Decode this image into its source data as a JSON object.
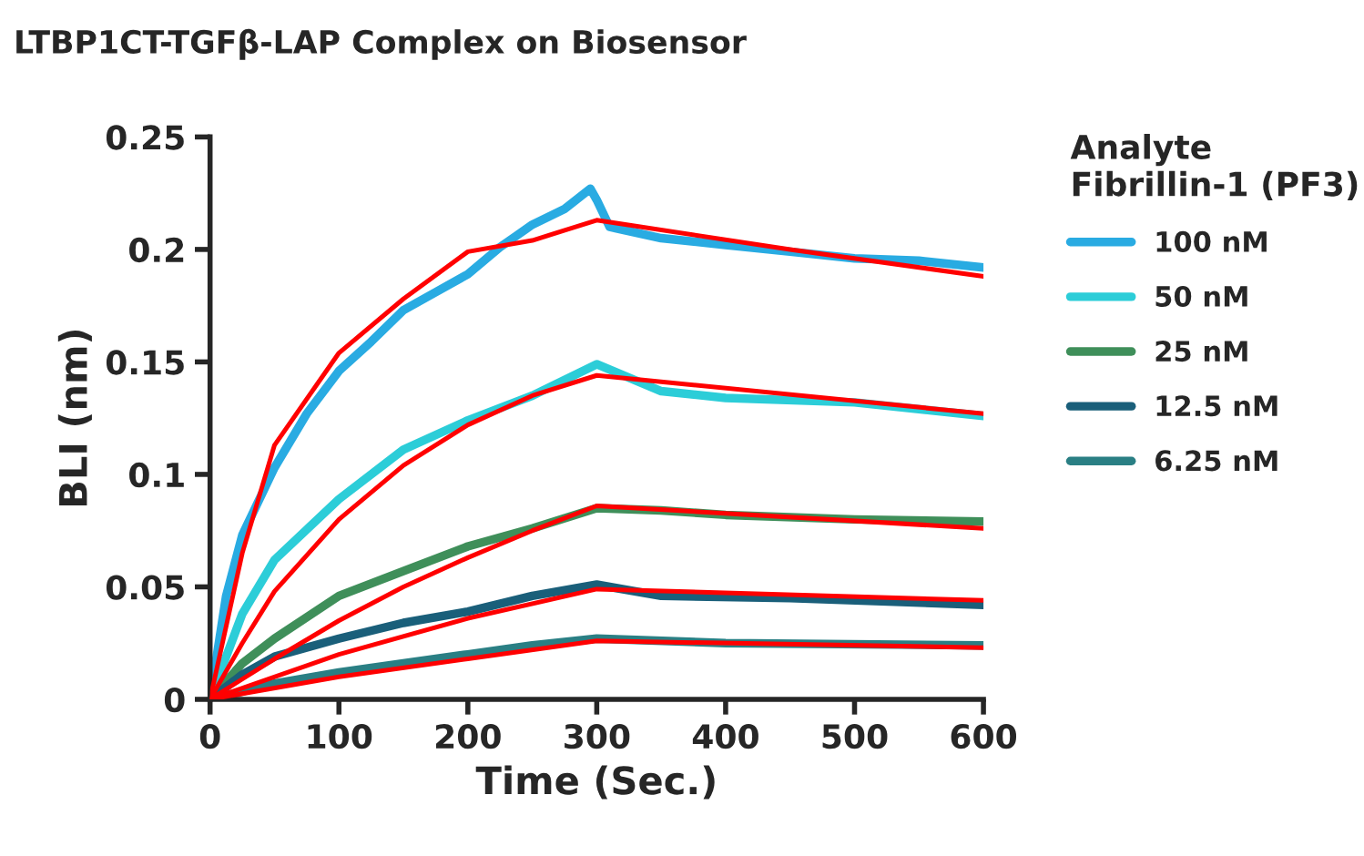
{
  "chart_data": {
    "type": "line",
    "title": "LTBP1CT-TGFβ-LAP Complex on Biosensor",
    "xlabel": "Time (Sec.)",
    "ylabel": "BLI (nm)",
    "legend_title": "Analyte\nFibrillin-1 (PF3)",
    "xlim": [
      0,
      600
    ],
    "ylim": [
      0,
      0.25
    ],
    "xticks": [
      0,
      100,
      200,
      300,
      400,
      500,
      600
    ],
    "yticks": [
      0,
      0.05,
      0.1,
      0.15,
      0.2,
      0.25
    ],
    "grid": false,
    "legend": "right",
    "marker": "none",
    "line_style": "solid",
    "series": [
      {
        "name": "100 nM",
        "color": "#29abe2",
        "x": [
          0,
          12.5,
          25,
          50,
          75,
          100,
          125,
          150,
          175,
          200,
          225,
          250,
          275,
          295,
          300,
          310,
          350,
          400,
          450,
          500,
          550,
          600
        ],
        "values": [
          0,
          0.046,
          0.073,
          0.103,
          0.127,
          0.146,
          0.159,
          0.173,
          0.181,
          0.189,
          0.201,
          0.211,
          0.218,
          0.227,
          0.222,
          0.21,
          0.205,
          0.202,
          0.199,
          0.196,
          0.195,
          0.192
        ]
      },
      {
        "name": "50 nM",
        "color": "#2ccdd8",
        "x": [
          0,
          25,
          50,
          100,
          150,
          200,
          250,
          300,
          350,
          400,
          500,
          600
        ],
        "values": [
          0,
          0.038,
          0.062,
          0.089,
          0.111,
          0.124,
          0.135,
          0.149,
          0.137,
          0.134,
          0.132,
          0.126
        ]
      },
      {
        "name": "25 nM",
        "color": "#3f8f5a",
        "x": [
          0,
          25,
          50,
          100,
          150,
          200,
          250,
          300,
          350,
          400,
          500,
          600
        ],
        "values": [
          0,
          0.016,
          0.027,
          0.046,
          0.057,
          0.068,
          0.076,
          0.085,
          0.084,
          0.082,
          0.08,
          0.079
        ]
      },
      {
        "name": "12.5 nM",
        "color": "#1a5f7a",
        "x": [
          0,
          25,
          50,
          100,
          150,
          200,
          250,
          300,
          350,
          450,
          600
        ],
        "values": [
          0,
          0.011,
          0.019,
          0.027,
          0.034,
          0.039,
          0.046,
          0.051,
          0.046,
          0.045,
          0.042
        ]
      },
      {
        "name": "6.25 nM",
        "color": "#2a7f84",
        "x": [
          0,
          50,
          100,
          150,
          200,
          250,
          300,
          400,
          600
        ],
        "values": [
          0,
          0.007,
          0.012,
          0.016,
          0.02,
          0.024,
          0.027,
          0.025,
          0.024
        ]
      },
      {
        "color": "#ff0000",
        "x": [
          0,
          25,
          50,
          100,
          150,
          200,
          250,
          300,
          450,
          600
        ],
        "values": [
          0,
          0.065,
          0.113,
          0.154,
          0.178,
          0.199,
          0.204,
          0.213,
          0.2,
          0.188
        ]
      },
      {
        "color": "#ff0000",
        "x": [
          0,
          25,
          50,
          100,
          150,
          200,
          250,
          300,
          600
        ],
        "values": [
          0,
          0.025,
          0.048,
          0.08,
          0.104,
          0.122,
          0.135,
          0.144,
          0.127
        ]
      },
      {
        "color": "#ff0000",
        "x": [
          0,
          25,
          50,
          100,
          150,
          200,
          250,
          300,
          600
        ],
        "values": [
          0,
          0.009,
          0.018,
          0.035,
          0.05,
          0.063,
          0.075,
          0.086,
          0.076
        ]
      },
      {
        "color": "#ff0000",
        "x": [
          0,
          100,
          200,
          300,
          600
        ],
        "values": [
          0,
          0.02,
          0.036,
          0.049,
          0.044
        ]
      },
      {
        "color": "#ff0000",
        "x": [
          0,
          100,
          200,
          300,
          600
        ],
        "values": [
          0,
          0.01,
          0.018,
          0.026,
          0.023
        ]
      }
    ]
  }
}
